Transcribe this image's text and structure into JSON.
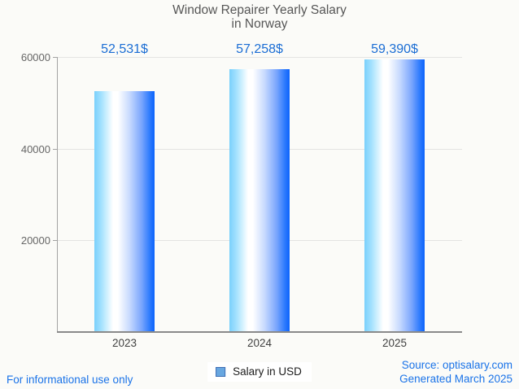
{
  "title": {
    "line1": "Window Repairer Yearly Salary",
    "line2": "in Norway"
  },
  "chart_data": {
    "type": "bar",
    "title": "Window Repairer Yearly Salary in Norway",
    "categories": [
      "2023",
      "2024",
      "2025"
    ],
    "values": [
      52531,
      57258,
      59390
    ],
    "value_labels": [
      "52,531$",
      "57,258$",
      "59,390$"
    ],
    "xlabel": "",
    "ylabel": "",
    "ylim": [
      0,
      60000
    ],
    "yticks": [
      20000,
      40000,
      60000
    ],
    "ytick_labels": [
      "20000",
      "40000",
      "60000"
    ],
    "grid": true,
    "legend_position": "bottom-center",
    "bar_gradient": [
      "#7ad0fc",
      "#ffffff",
      "#0b63fb"
    ]
  },
  "legend": {
    "label": "Salary in USD",
    "marker_color": "#68a7e0",
    "marker_border_color": "#3f6fb5"
  },
  "footer": {
    "left_text": "For informational use only",
    "source_line1": "Source: optisalary.com",
    "source_line2": "Generated March 2025"
  },
  "colors": {
    "background": "#fbfbf8",
    "title_text": "#565656",
    "value_label_text": "#1a6dd4",
    "axis_label_text": "#666666",
    "year_label_text": "#3f3f3f",
    "gridline": "#e4e4e2",
    "axis_line": "#a3a3a3",
    "baseline": "#8a8a8a",
    "link_blue": "#1a73e8"
  }
}
